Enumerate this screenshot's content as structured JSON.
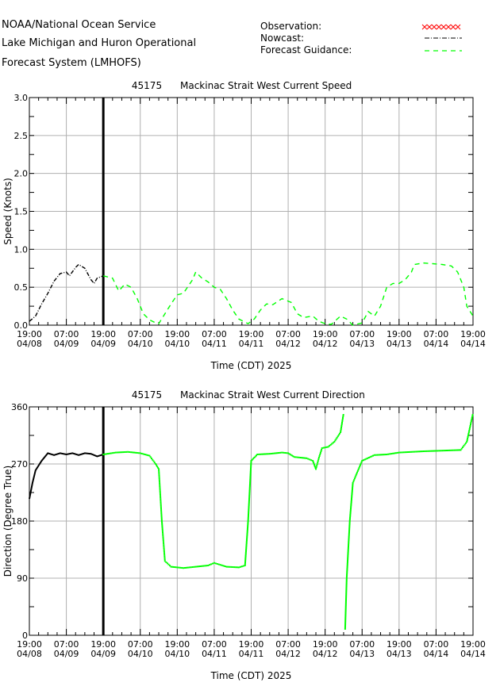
{
  "header": {
    "lines": [
      "NOAA/National Ocean Service",
      "Lake Michigan and Huron Operational",
      "Forecast System (LMHOFS)"
    ]
  },
  "legend": {
    "items": [
      {
        "label": "Observation:",
        "style": "x-markers",
        "color": "#ff0000"
      },
      {
        "label": "Nowcast:",
        "style": "dash-dot",
        "color": "#000000"
      },
      {
        "label": "Forecast Guidance:",
        "style": "dashed",
        "color": "#00ff00"
      }
    ]
  },
  "x_ticks": {
    "times": [
      "19:00",
      "07:00",
      "19:00",
      "07:00",
      "19:00",
      "07:00",
      "19:00",
      "07:00",
      "19:00",
      "07:00",
      "19:00",
      "07:00",
      "19:00"
    ],
    "dates": [
      "04/08",
      "04/09",
      "04/09",
      "04/10",
      "04/10",
      "04/11",
      "04/11",
      "04/12",
      "04/12",
      "04/13",
      "04/13",
      "04/14",
      "04/14"
    ]
  },
  "chart_data": [
    {
      "type": "line",
      "title_id": "45175",
      "title": "Mackinac Strait West Current Speed",
      "xlabel": "Time (CDT) 2025",
      "ylabel": "Speed (Knots)",
      "xlim": [
        "04/08 19:00",
        "04/14 19:00"
      ],
      "ylim": [
        0,
        3.0
      ],
      "y_ticks": [
        "0.0",
        "0.5",
        "1.0",
        "1.5",
        "2.0",
        "2.5",
        "3.0"
      ],
      "y_tick_values": [
        0,
        0.5,
        1.0,
        1.5,
        2.0,
        2.5,
        3.0
      ],
      "nowcast_end": "04/09 19:00",
      "grid": true,
      "series": [
        {
          "name": "Nowcast",
          "style": "dash-dot",
          "color": "#000000",
          "points": [
            [
              "04/08 19:00",
              0.05
            ],
            [
              "04/08 21:00",
              0.12
            ],
            [
              "04/08 23:00",
              0.28
            ],
            [
              "04/09 01:00",
              0.42
            ],
            [
              "04/09 03:00",
              0.58
            ],
            [
              "04/09 05:00",
              0.68
            ],
            [
              "04/09 07:00",
              0.7
            ],
            [
              "04/09 08:00",
              0.65
            ],
            [
              "04/09 10:00",
              0.76
            ],
            [
              "04/09 11:00",
              0.8
            ],
            [
              "04/09 13:00",
              0.75
            ],
            [
              "04/09 15:00",
              0.6
            ],
            [
              "04/09 16:00",
              0.55
            ],
            [
              "04/09 17:00",
              0.62
            ],
            [
              "04/09 19:00",
              0.65
            ]
          ]
        },
        {
          "name": "Forecast Guidance",
          "style": "dashed",
          "color": "#00ff00",
          "points": [
            [
              "04/09 19:00",
              0.65
            ],
            [
              "04/09 22:00",
              0.62
            ],
            [
              "04/10 00:00",
              0.45
            ],
            [
              "04/10 02:00",
              0.54
            ],
            [
              "04/10 04:00",
              0.5
            ],
            [
              "04/10 06:00",
              0.35
            ],
            [
              "04/10 08:00",
              0.15
            ],
            [
              "04/10 10:00",
              0.07
            ],
            [
              "04/10 12:00",
              0.03
            ],
            [
              "04/10 13:00",
              0.02
            ],
            [
              "04/10 15:00",
              0.15
            ],
            [
              "04/10 17:00",
              0.28
            ],
            [
              "04/10 19:00",
              0.4
            ],
            [
              "04/10 21:00",
              0.42
            ],
            [
              "04/11 00:00",
              0.6
            ],
            [
              "04/11 01:00",
              0.7
            ],
            [
              "04/11 03:00",
              0.62
            ],
            [
              "04/11 05:00",
              0.57
            ],
            [
              "04/11 07:00",
              0.5
            ],
            [
              "04/11 09:00",
              0.47
            ],
            [
              "04/11 11:00",
              0.35
            ],
            [
              "04/11 13:00",
              0.2
            ],
            [
              "04/11 15:00",
              0.08
            ],
            [
              "04/11 18:00",
              0.02
            ],
            [
              "04/11 20:00",
              0.08
            ],
            [
              "04/11 22:00",
              0.2
            ],
            [
              "04/12 00:00",
              0.28
            ],
            [
              "04/12 02:00",
              0.27
            ],
            [
              "04/12 05:00",
              0.35
            ],
            [
              "04/12 08:00",
              0.3
            ],
            [
              "04/12 10:00",
              0.15
            ],
            [
              "04/12 12:00",
              0.1
            ],
            [
              "04/12 15:00",
              0.12
            ],
            [
              "04/12 17:00",
              0.05
            ],
            [
              "04/12 19:00",
              0.02
            ],
            [
              "04/12 21:00",
              0.01
            ],
            [
              "04/13 00:00",
              0.12
            ],
            [
              "04/13 02:00",
              0.08
            ],
            [
              "04/13 04:00",
              0.0
            ],
            [
              "04/13 07:00",
              0.03
            ],
            [
              "04/13 09:00",
              0.18
            ],
            [
              "04/13 11:00",
              0.12
            ],
            [
              "04/13 13:00",
              0.25
            ],
            [
              "04/13 15:00",
              0.5
            ],
            [
              "04/13 17:00",
              0.55
            ],
            [
              "04/13 19:00",
              0.55
            ],
            [
              "04/13 21:00",
              0.6
            ],
            [
              "04/13 23:00",
              0.7
            ],
            [
              "04/14 00:00",
              0.8
            ],
            [
              "04/14 03:00",
              0.82
            ],
            [
              "04/14 06:00",
              0.81
            ],
            [
              "04/14 09:00",
              0.8
            ],
            [
              "04/14 12:00",
              0.78
            ],
            [
              "04/14 14:00",
              0.7
            ],
            [
              "04/14 16:00",
              0.5
            ],
            [
              "04/14 17:00",
              0.25
            ],
            [
              "04/14 19:00",
              0.12
            ]
          ]
        }
      ]
    },
    {
      "type": "line",
      "title_id": "45175",
      "title": "Mackinac Strait West Current Direction",
      "xlabel": "Time (CDT) 2025",
      "ylabel": "Direction (Degree True)",
      "xlim": [
        "04/08 19:00",
        "04/14 19:00"
      ],
      "ylim": [
        0,
        360
      ],
      "y_ticks": [
        "0",
        "90",
        "180",
        "270",
        "360"
      ],
      "y_tick_values": [
        0,
        90,
        180,
        270,
        360
      ],
      "nowcast_end": "04/09 19:00",
      "grid": true,
      "series": [
        {
          "name": "Nowcast",
          "style": "solid",
          "color": "#000000",
          "points": [
            [
              "04/08 19:00",
              215
            ],
            [
              "04/08 20:00",
              240
            ],
            [
              "04/08 21:00",
              260
            ],
            [
              "04/08 23:00",
              275
            ],
            [
              "04/09 01:00",
              287
            ],
            [
              "04/09 03:00",
              284
            ],
            [
              "04/09 05:00",
              287
            ],
            [
              "04/09 07:00",
              285
            ],
            [
              "04/09 09:00",
              287
            ],
            [
              "04/09 11:00",
              284
            ],
            [
              "04/09 13:00",
              287
            ],
            [
              "04/09 15:00",
              286
            ],
            [
              "04/09 17:00",
              282
            ],
            [
              "04/09 19:00",
              285
            ]
          ]
        },
        {
          "name": "Forecast Guidance",
          "style": "dotted",
          "color": "#00ff00",
          "points": [
            [
              "04/09 19:00",
              285
            ],
            [
              "04/09 23:00",
              288
            ],
            [
              "04/10 03:00",
              289
            ],
            [
              "04/10 07:00",
              287
            ],
            [
              "04/10 10:00",
              283
            ],
            [
              "04/10 12:00",
              270
            ],
            [
              "04/10 13:00",
              262
            ],
            [
              "04/10 14:00",
              180
            ],
            [
              "04/10 15:00",
              117
            ],
            [
              "04/10 17:00",
              108
            ],
            [
              "04/10 21:00",
              106
            ],
            [
              "04/11 01:00",
              108
            ],
            [
              "04/11 05:00",
              110
            ],
            [
              "04/11 07:00",
              114
            ],
            [
              "04/11 11:00",
              108
            ],
            [
              "04/11 15:00",
              107
            ],
            [
              "04/11 17:00",
              110
            ],
            [
              "04/11 18:00",
              180
            ],
            [
              "04/11 19:00",
              275
            ],
            [
              "04/11 21:00",
              285
            ],
            [
              "04/12 01:00",
              286
            ],
            [
              "04/12 05:00",
              288
            ],
            [
              "04/12 07:00",
              287
            ],
            [
              "04/12 09:00",
              281
            ],
            [
              "04/12 13:00",
              279
            ],
            [
              "04/12 15:00",
              275
            ],
            [
              "04/12 16:00",
              262
            ],
            [
              "04/12 17:00",
              280
            ],
            [
              "04/12 18:00",
              295
            ],
            [
              "04/12 20:00",
              297
            ],
            [
              "04/12 22:00",
              305
            ],
            [
              "04/13 00:00",
              320
            ],
            [
              "04/13 01:00",
              350
            ],
            [
              "04/13 01:30",
              10
            ],
            [
              "04/13 02:00",
              90
            ],
            [
              "04/13 03:00",
              180
            ],
            [
              "04/13 04:00",
              240
            ],
            [
              "04/13 05:00",
              252
            ],
            [
              "04/13 07:00",
              275
            ],
            [
              "04/13 11:00",
              284
            ],
            [
              "04/13 15:00",
              285
            ],
            [
              "04/13 19:00",
              288
            ],
            [
              "04/13 23:00",
              289
            ],
            [
              "04/14 03:00",
              290
            ],
            [
              "04/14 09:00",
              291
            ],
            [
              "04/14 15:00",
              292
            ],
            [
              "04/14 17:00",
              305
            ],
            [
              "04/14 19:00",
              350
            ]
          ]
        }
      ]
    }
  ]
}
